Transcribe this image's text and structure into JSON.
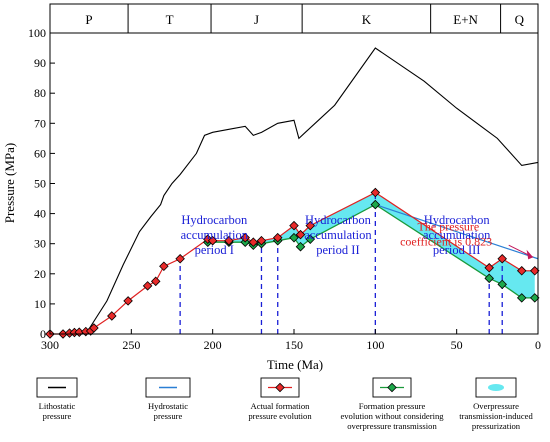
{
  "chart_data": {
    "type": "line",
    "xlabel": "Time (Ma)",
    "ylabel": "Pressure (MPa)",
    "xlim": [
      300,
      0
    ],
    "ylim": [
      0,
      100
    ],
    "x_ticks": [
      300,
      250,
      200,
      150,
      100,
      50,
      0
    ],
    "y_ticks": [
      0,
      10,
      20,
      30,
      40,
      50,
      60,
      70,
      80,
      90,
      100
    ],
    "periods": [
      {
        "label": "P",
        "start": 300,
        "end": 252
      },
      {
        "label": "T",
        "start": 252,
        "end": 201
      },
      {
        "label": "J",
        "start": 201,
        "end": 145
      },
      {
        "label": "K",
        "start": 145,
        "end": 66
      },
      {
        "label": "E+N",
        "start": 66,
        "end": 23
      },
      {
        "label": "Q",
        "start": 23,
        "end": 0
      }
    ],
    "series": [
      {
        "name": "Lithostatic pressure",
        "color": "#000000",
        "marker": "none",
        "x": [
          278,
          265,
          255,
          245,
          238,
          232,
          230,
          225,
          220,
          210,
          205,
          200,
          190,
          180,
          175,
          170,
          160,
          150,
          147,
          143,
          135,
          125,
          100,
          70,
          50,
          25,
          10,
          0
        ],
        "y": [
          0,
          11,
          23,
          34,
          39,
          43,
          46,
          50,
          53,
          60,
          66,
          67,
          68,
          69,
          66,
          67,
          70,
          71,
          65,
          67,
          71,
          76,
          95,
          84,
          75,
          65,
          56,
          57
        ]
      },
      {
        "name": "Hydrostatic pressure",
        "color": "#2a7fd4",
        "marker": "none",
        "x": [
          100,
          0
        ],
        "y": [
          43,
          25
        ]
      },
      {
        "name": "Actual formation pressure evolution",
        "color": "#e02020",
        "marker": "diamond-red",
        "x": [
          300,
          292,
          288,
          285,
          282,
          278,
          275,
          273,
          262,
          252,
          240,
          235,
          230,
          220,
          203,
          200,
          190,
          180,
          175,
          170,
          160,
          150,
          146,
          140,
          100,
          30,
          22,
          10,
          2
        ],
        "y": [
          0,
          0,
          0.3,
          0.5,
          0.6,
          0.8,
          1,
          2,
          6,
          11,
          16,
          17.5,
          22.5,
          25,
          31.5,
          31,
          31,
          32,
          30.5,
          31,
          32,
          36,
          33,
          36,
          47,
          22,
          25,
          21,
          21
        ]
      },
      {
        "name": "Formation pressure evolution without considering overpressure transmission",
        "color": "#1a9a3a",
        "marker": "diamond-green",
        "x": [
          203,
          190,
          180,
          175,
          170,
          160,
          150,
          146,
          140,
          100,
          30,
          22,
          10,
          2
        ],
        "y": [
          30.5,
          30.5,
          30.5,
          29.5,
          30,
          31,
          32,
          29,
          31.5,
          43,
          18.5,
          16.5,
          12,
          12
        ]
      }
    ],
    "fill_band": {
      "name": "Overpressure transmission-induced pressurization",
      "color": "#66e8f0"
    },
    "period_markers": [
      220,
      170,
      160,
      100,
      30,
      22
    ],
    "annotations": [
      {
        "text_lines": [
          "Hydrocarbon",
          "accumulation",
          "period I"
        ],
        "x": 199,
        "y": 24
      },
      {
        "text_lines": [
          "Hydrocarbon",
          "accumulation",
          "period II"
        ],
        "x": 123,
        "y": 24
      },
      {
        "text_lines": [
          "Hydrocarbon",
          "accumulation",
          "period III"
        ],
        "x": 50,
        "y": 24
      }
    ],
    "pressure_coefficient_note": {
      "lines": [
        "The pressure",
        "coefficient is 0.823"
      ],
      "x": 30,
      "y": 36
    }
  },
  "legend": [
    {
      "key": "litho",
      "lines": [
        "Lithostatic",
        "pressure"
      ]
    },
    {
      "key": "hydro",
      "lines": [
        "Hydrostatic",
        "pressure"
      ]
    },
    {
      "key": "actual",
      "lines": [
        "Actual formation",
        "pressure evolution"
      ]
    },
    {
      "key": "without",
      "lines": [
        "Formation pressure",
        "evolution without considering",
        "overpressure transmission"
      ]
    },
    {
      "key": "band",
      "lines": [
        "Overpressure",
        "transmission-induced",
        "pressurization"
      ]
    }
  ]
}
